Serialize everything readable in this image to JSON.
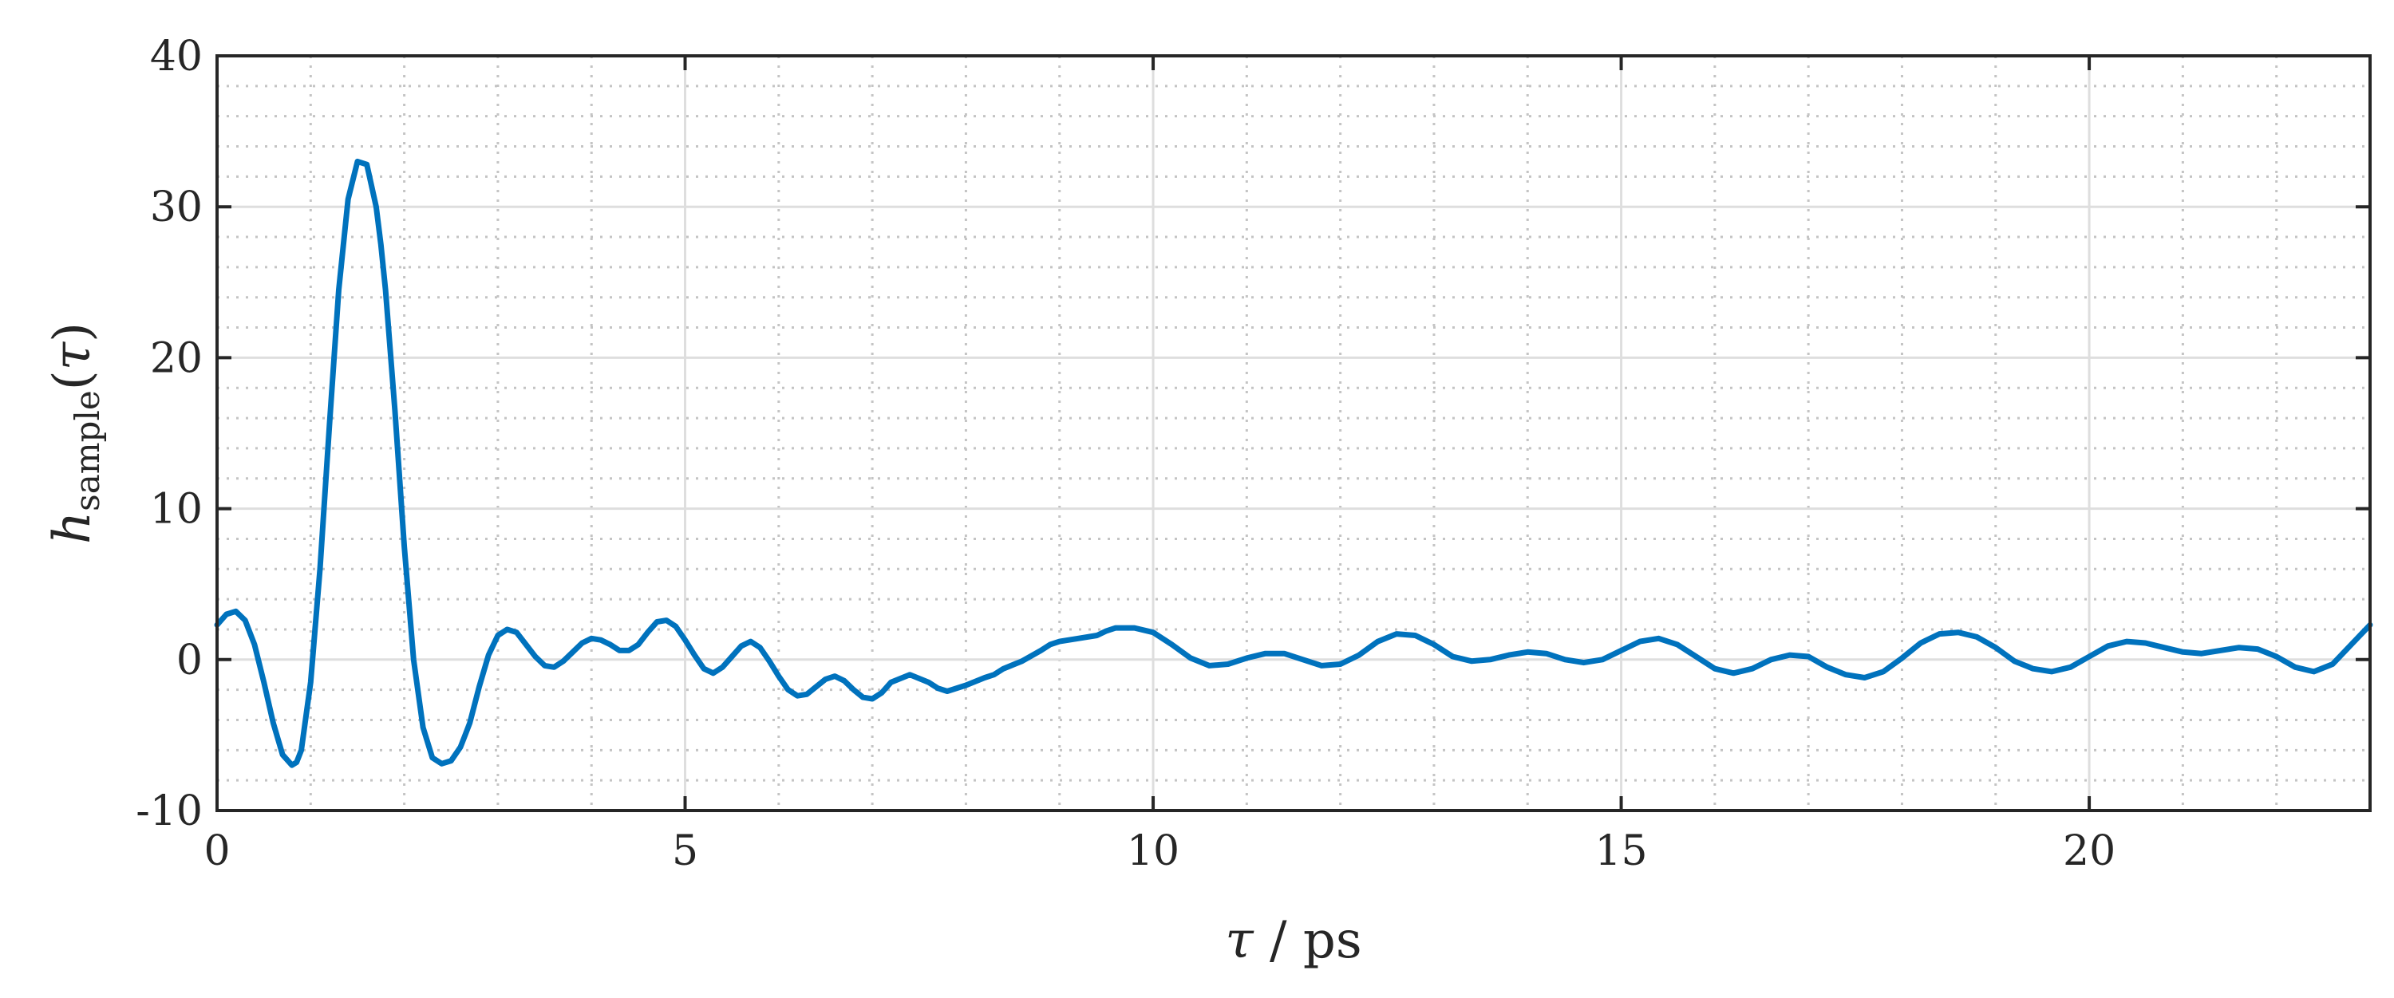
{
  "chart_data": {
    "type": "line",
    "xlabel": {
      "symbol": "τ",
      "separator": "/",
      "unit": "ps"
    },
    "ylabel": {
      "symbol": "h",
      "subscript": "sample",
      "open": "(",
      "arg": "τ",
      "close": ")"
    },
    "xlim": [
      0,
      23
    ],
    "ylim": [
      -10,
      40
    ],
    "x_ticks": [
      0,
      5,
      10,
      15,
      20
    ],
    "x_tick_labels": [
      "0",
      "5",
      "10",
      "15",
      "20"
    ],
    "y_ticks": [
      -10,
      0,
      10,
      20,
      30,
      40
    ],
    "y_tick_labels": [
      "-10",
      "0",
      "10",
      "20",
      "30",
      "40"
    ],
    "x_minor_step": 1,
    "y_minor_step": 2,
    "grid": true,
    "minor_grid": true,
    "series": [
      {
        "color": "#0072BD",
        "x": [
          0,
          0.1,
          0.2,
          0.3,
          0.4,
          0.5,
          0.6,
          0.7,
          0.8,
          0.85,
          0.9,
          1.0,
          1.1,
          1.2,
          1.3,
          1.4,
          1.5,
          1.6,
          1.7,
          1.75,
          1.8,
          1.9,
          2.0,
          2.1,
          2.2,
          2.3,
          2.4,
          2.5,
          2.6,
          2.65,
          2.7,
          2.8,
          2.9,
          3.0,
          3.1,
          3.2,
          3.3,
          3.4,
          3.5,
          3.6,
          3.7,
          3.8,
          3.9,
          4.0,
          4.1,
          4.2,
          4.3,
          4.4,
          4.5,
          4.6,
          4.7,
          4.8,
          4.9,
          5.0,
          5.1,
          5.2,
          5.3,
          5.4,
          5.5,
          5.6,
          5.7,
          5.8,
          5.9,
          6.0,
          6.1,
          6.2,
          6.3,
          6.4,
          6.5,
          6.6,
          6.7,
          6.8,
          6.9,
          7.0,
          7.1,
          7.2,
          7.4,
          7.6,
          7.7,
          7.8,
          8.0,
          8.2,
          8.3,
          8.4,
          8.6,
          8.8,
          8.9,
          9.0,
          9.2,
          9.4,
          9.5,
          9.6,
          9.8,
          10.0,
          10.2,
          10.4,
          10.6,
          10.8,
          11.0,
          11.2,
          11.4,
          11.6,
          11.8,
          12.0,
          12.2,
          12.4,
          12.6,
          12.8,
          13.0,
          13.2,
          13.4,
          13.6,
          13.8,
          14.0,
          14.2,
          14.4,
          14.6,
          14.8,
          15.0,
          15.2,
          15.4,
          15.6,
          15.8,
          16.0,
          16.2,
          16.4,
          16.6,
          16.8,
          17.0,
          17.2,
          17.4,
          17.6,
          17.8,
          18.0,
          18.2,
          18.4,
          18.6,
          18.8,
          19.0,
          19.2,
          19.4,
          19.6,
          19.8,
          20.0,
          20.2,
          20.4,
          20.6,
          20.8,
          21.0,
          21.2,
          21.4,
          21.6,
          21.8,
          22.0,
          22.2,
          22.4,
          22.6,
          22.8,
          23.0
        ],
        "y": [
          2.3,
          3.0,
          3.2,
          2.6,
          1.0,
          -1.5,
          -4.2,
          -6.3,
          -7.0,
          -6.8,
          -6.0,
          -1.5,
          6.0,
          15.5,
          24.5,
          30.5,
          33.0,
          32.8,
          30.0,
          27.5,
          24.5,
          16.5,
          7.5,
          0.0,
          -4.5,
          -6.5,
          -6.9,
          -6.7,
          -5.8,
          -5.0,
          -4.2,
          -1.8,
          0.3,
          1.6,
          2.0,
          1.8,
          1.0,
          0.2,
          -0.4,
          -0.5,
          -0.1,
          0.5,
          1.1,
          1.4,
          1.3,
          1.0,
          0.6,
          0.6,
          1.0,
          1.8,
          2.5,
          2.6,
          2.2,
          1.3,
          0.3,
          -0.6,
          -0.9,
          -0.5,
          0.2,
          0.9,
          1.2,
          0.8,
          -0.1,
          -1.1,
          -2.0,
          -2.4,
          -2.3,
          -1.8,
          -1.3,
          -1.1,
          -1.4,
          -2.0,
          -2.5,
          -2.6,
          -2.2,
          -1.5,
          -1.0,
          -1.5,
          -1.9,
          -2.1,
          -1.7,
          -1.2,
          -1.0,
          -0.6,
          -0.1,
          0.6,
          1.0,
          1.2,
          1.4,
          1.6,
          1.9,
          2.1,
          2.1,
          1.8,
          1.0,
          0.1,
          -0.4,
          -0.3,
          0.1,
          0.4,
          0.4,
          0.0,
          -0.4,
          -0.3,
          0.3,
          1.2,
          1.7,
          1.6,
          1.0,
          0.2,
          -0.1,
          0.0,
          0.3,
          0.5,
          0.4,
          0.0,
          -0.2,
          0.0,
          0.6,
          1.2,
          1.4,
          1.0,
          0.2,
          -0.6,
          -0.9,
          -0.6,
          0.0,
          0.3,
          0.2,
          -0.5,
          -1.0,
          -1.2,
          -0.8,
          0.1,
          1.1,
          1.7,
          1.8,
          1.5,
          0.8,
          -0.1,
          -0.6,
          -0.8,
          -0.5,
          0.2,
          0.9,
          1.2,
          1.1,
          0.8,
          0.5,
          0.4,
          0.6,
          0.8,
          0.7,
          0.2,
          -0.5,
          -0.8,
          -0.3,
          1.0,
          2.3
        ]
      }
    ]
  }
}
